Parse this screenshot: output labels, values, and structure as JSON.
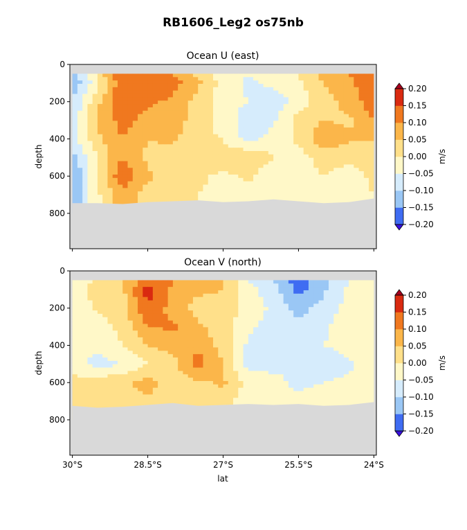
{
  "chart_data": {
    "type": "heatmap",
    "title": "RB1606_Leg2 os75nb",
    "colors": {
      "levels": [
        "#3a10e0",
        "#3f6cf2",
        "#9ac7f5",
        "#d6ecfc",
        "#fff8c8",
        "#ffe08a",
        "#fbb64a",
        "#f0781f",
        "#d92a10",
        "#a8001e"
      ],
      "land": "#d9d9d9"
    },
    "shared_x": {
      "label": "lat",
      "range": [
        -30.05,
        -23.95
      ],
      "ticks": [
        -30,
        -28.5,
        -27,
        -25.5,
        -24
      ],
      "tick_labels": [
        "30°S",
        "28.5°S",
        "27°S",
        "25.5°S",
        "24°S"
      ]
    },
    "panels": [
      {
        "id": "u",
        "title": "Ocean U (east)",
        "ylabel": "depth",
        "yrange": [
          990,
          0
        ],
        "yticks": [
          0,
          200,
          400,
          600,
          800
        ],
        "ytick_labels": [
          "0",
          "200",
          "400",
          "600",
          "800"
        ],
        "colorbar": {
          "label": "m/s",
          "levels": [
            -0.2,
            -0.15,
            -0.1,
            -0.05,
            0,
            0.05,
            0.1,
            0.15,
            0.2
          ],
          "tick_labels": [
            "−0.20",
            "−0.15",
            "−0.10",
            "−0.05",
            "0.00",
            "0.05",
            "0.10",
            "0.15",
            "0.20"
          ]
        },
        "lat": [
          -30,
          -29.5,
          -29,
          -28.5,
          -28,
          -27.5,
          -27,
          -26.5,
          -26,
          -25.5,
          -25,
          -24.5,
          -24
        ],
        "depth": [
          50,
          100,
          200,
          300,
          400,
          500,
          600,
          700
        ],
        "values": [
          [
            -0.12,
            0.02,
            0.14,
            0.13,
            0.1,
            0.04,
            -0.03,
            -0.05,
            -0.02,
            0.0,
            0.07,
            0.1,
            0.13
          ],
          [
            -0.14,
            -0.02,
            0.15,
            0.15,
            0.12,
            0.06,
            -0.02,
            -0.06,
            -0.04,
            -0.01,
            0.05,
            0.09,
            0.14
          ],
          [
            -0.1,
            0.04,
            0.13,
            0.11,
            0.09,
            0.03,
            -0.03,
            -0.05,
            -0.08,
            -0.03,
            0.03,
            0.07,
            0.13
          ],
          [
            -0.08,
            0.06,
            0.12,
            0.08,
            0.08,
            0.02,
            -0.02,
            -0.08,
            -0.06,
            0.02,
            0.05,
            0.04,
            0.1
          ],
          [
            -0.07,
            0.04,
            0.1,
            0.05,
            0.06,
            0.01,
            0.0,
            -0.07,
            -0.03,
            0.01,
            0.09,
            0.06,
            0.05
          ],
          [
            -0.12,
            0.0,
            0.1,
            0.04,
            0.03,
            0.03,
            0.02,
            0.05,
            0.0,
            -0.02,
            0.02,
            0.01,
            0.02
          ],
          [
            -0.16,
            0.01,
            0.14,
            0.06,
            0.02,
            0.01,
            -0.01,
            0.01,
            -0.04,
            -0.03,
            0.0,
            -0.02,
            0.01
          ],
          [
            -0.14,
            -0.01,
            0.08,
            0.03,
            0.01,
            0.0,
            -0.02,
            -0.02,
            -0.02,
            -0.03,
            -0.01,
            -0.02,
            0.0
          ]
        ],
        "bottom_depth": [
          745,
          745,
          750,
          740,
          735,
          730,
          740,
          735,
          725,
          735,
          745,
          740,
          720
        ]
      },
      {
        "id": "v",
        "title": "Ocean V (north)",
        "ylabel": "depth",
        "yrange": [
          990,
          0
        ],
        "yticks": [
          0,
          200,
          400,
          600,
          800
        ],
        "ytick_labels": [
          "0",
          "200",
          "400",
          "600",
          "800"
        ],
        "colorbar": {
          "label": "m/s",
          "levels": [
            -0.2,
            -0.15,
            -0.1,
            -0.05,
            0,
            0.05,
            0.1,
            0.15,
            0.2
          ],
          "tick_labels": [
            "−0.20",
            "−0.15",
            "−0.10",
            "−0.05",
            "0.00",
            "0.05",
            "0.10",
            "0.15",
            "0.20"
          ]
        },
        "lat": [
          -30,
          -29.5,
          -29,
          -28.5,
          -28,
          -27.5,
          -27,
          -26.5,
          -26,
          -25.5,
          -25,
          -24.5,
          -24
        ],
        "depth": [
          50,
          100,
          200,
          300,
          400,
          500,
          600,
          700
        ],
        "values": [
          [
            -0.03,
            0.0,
            0.05,
            0.12,
            0.1,
            0.08,
            0.06,
            -0.05,
            -0.1,
            -0.18,
            -0.12,
            -0.05,
            -0.02
          ],
          [
            -0.02,
            0.02,
            0.04,
            0.18,
            0.09,
            0.06,
            0.05,
            -0.03,
            -0.08,
            -0.17,
            -0.11,
            -0.04,
            -0.03
          ],
          [
            -0.04,
            0.01,
            0.03,
            0.14,
            0.08,
            0.03,
            0.04,
            -0.02,
            -0.06,
            -0.12,
            -0.08,
            -0.03,
            0.0
          ],
          [
            -0.02,
            -0.03,
            0.02,
            0.1,
            0.11,
            0.06,
            0.02,
            -0.04,
            -0.07,
            -0.08,
            -0.06,
            -0.02,
            -0.04
          ],
          [
            0.0,
            -0.04,
            0.0,
            0.05,
            0.07,
            0.09,
            0.03,
            -0.06,
            -0.1,
            -0.09,
            -0.05,
            -0.03,
            -0.02
          ],
          [
            -0.03,
            -0.07,
            -0.05,
            0.0,
            0.03,
            0.12,
            0.05,
            -0.07,
            -0.06,
            -0.05,
            -0.08,
            -0.06,
            -0.03
          ],
          [
            0.02,
            0.03,
            0.04,
            0.07,
            0.03,
            0.04,
            0.06,
            -0.02,
            -0.04,
            -0.06,
            -0.05,
            -0.04,
            -0.01
          ],
          [
            0.02,
            0.02,
            0.03,
            0.04,
            0.02,
            0.01,
            0.02,
            -0.03,
            -0.02,
            -0.04,
            -0.03,
            -0.02,
            0.0
          ]
        ],
        "bottom_depth": [
          725,
          735,
          730,
          720,
          710,
          725,
          720,
          715,
          720,
          715,
          725,
          720,
          705
        ]
      }
    ]
  }
}
